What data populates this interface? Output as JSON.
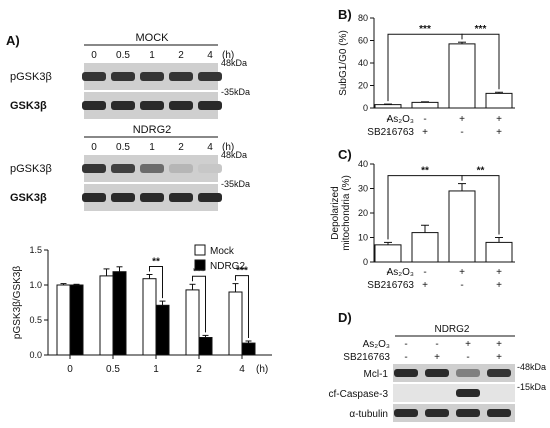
{
  "panel_labels": {
    "a": "A)",
    "b": "B)",
    "c": "C)",
    "d": "D)"
  },
  "blots_a": [
    {
      "title": "MOCK",
      "time_unit": "(h)",
      "times": [
        "0",
        "0.5",
        "1",
        "2",
        "4"
      ],
      "rows": [
        {
          "label": "pGSK3β",
          "marker": "48kDa",
          "intensity": [
            0.8,
            0.8,
            0.8,
            0.8,
            0.8
          ]
        },
        {
          "label": "GSK3β",
          "marker": "35kDa",
          "intensity": [
            0.85,
            0.85,
            0.85,
            0.85,
            0.85
          ]
        }
      ]
    },
    {
      "title": "NDRG2",
      "time_unit": "(h)",
      "times": [
        "0",
        "0.5",
        "1",
        "2",
        "4"
      ],
      "rows": [
        {
          "label": "pGSK3β",
          "marker": "48kDa",
          "intensity": [
            0.8,
            0.75,
            0.55,
            0.2,
            0.12
          ]
        },
        {
          "label": "GSK3β",
          "marker": "35kDa",
          "intensity": [
            0.85,
            0.85,
            0.85,
            0.85,
            0.85
          ]
        }
      ]
    }
  ],
  "chart_data": [
    {
      "id": "A-bar",
      "type": "bar",
      "ylabel": "pGSK3β/GSK3β",
      "xlabel": "(h)",
      "categories": [
        "0",
        "0.5",
        "1",
        "2",
        "4"
      ],
      "ylim": [
        0,
        1.5
      ],
      "yticks": [
        "0.0",
        "0.5",
        "1.0",
        "1.5"
      ],
      "legend_position": "top-right",
      "series": [
        {
          "name": "Mock",
          "color": "#ffffff",
          "values": [
            1.0,
            1.13,
            1.09,
            0.93,
            0.9
          ],
          "errors": [
            0.02,
            0.1,
            0.06,
            0.08,
            0.12
          ]
        },
        {
          "name": "NDRG2",
          "color": "#000000",
          "values": [
            1.0,
            1.19,
            0.71,
            0.25,
            0.17
          ],
          "errors": [
            0.01,
            0.07,
            0.06,
            0.03,
            0.03
          ]
        }
      ],
      "significance": [
        {
          "category": "1",
          "label": "**"
        },
        {
          "category": "2",
          "label": "***"
        },
        {
          "category": "4",
          "label": "***"
        }
      ]
    },
    {
      "id": "B",
      "type": "bar",
      "ylabel": "SubG1/G0 (%)",
      "ylim": [
        0,
        80
      ],
      "yticks": [
        "0",
        "20",
        "40",
        "60",
        "80"
      ],
      "values": [
        3,
        5,
        57,
        13
      ],
      "errors": [
        0.5,
        0.5,
        1.5,
        1
      ],
      "significance": [
        {
          "from": 0,
          "to": 2,
          "label": "***"
        },
        {
          "from": 2,
          "to": 3,
          "label": "***"
        }
      ]
    },
    {
      "id": "C",
      "type": "bar",
      "ylabel_lines": [
        "Depolarized",
        "mitochondria (%)"
      ],
      "ylim": [
        0,
        40
      ],
      "yticks": [
        "0",
        "10",
        "20",
        "30",
        "40"
      ],
      "values": [
        7,
        12,
        29,
        8
      ],
      "errors": [
        1,
        3,
        3,
        2
      ],
      "significance": [
        {
          "from": 0,
          "to": 2,
          "label": "**"
        },
        {
          "from": 2,
          "to": 3,
          "label": "**"
        }
      ]
    }
  ],
  "treatments": {
    "as2o3_label": "As₂O₃",
    "sb_label": "SB216763",
    "as2o3": [
      "-",
      "-",
      "+",
      "+"
    ],
    "sb": [
      "-",
      "+",
      "-",
      "+"
    ]
  },
  "blot_d": {
    "title": "NDRG2",
    "rows": [
      {
        "label": "Mcl-1",
        "marker": "-48kDa",
        "intensity": [
          0.85,
          0.85,
          0.45,
          0.8
        ]
      },
      {
        "label": "cf-Caspase-3",
        "marker": "-15kDa",
        "intensity": [
          0.0,
          0.0,
          0.85,
          0.0
        ]
      },
      {
        "label": "α-tubulin",
        "marker": "",
        "intensity": [
          0.85,
          0.85,
          0.85,
          0.85
        ]
      }
    ]
  }
}
